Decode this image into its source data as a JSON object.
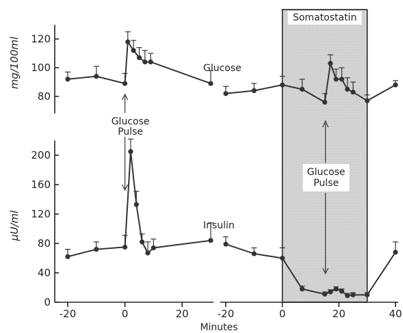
{
  "chart_data": [
    {
      "type": "line",
      "panel": "top",
      "ylabel": "mg/100ml",
      "yticks": [
        80,
        100,
        120
      ],
      "ylim": [
        70,
        128
      ],
      "x_axis_segments": [
        {
          "xlim": [
            -22,
            31
          ]
        },
        {
          "xlim": [
            -22,
            41
          ]
        }
      ],
      "annotations": [
        "Glucose",
        "Glucose\nPulse",
        "Somatostatin"
      ],
      "series": [
        {
          "segment": 0,
          "points": [
            {
              "x": -20,
              "y": 92,
              "err": 5
            },
            {
              "x": -10,
              "y": 94,
              "err": 7
            },
            {
              "x": 0,
              "y": 89,
              "err": 7
            },
            {
              "x": 1,
              "y": 118,
              "err": 7
            },
            {
              "x": 3,
              "y": 112,
              "err": 7
            },
            {
              "x": 5,
              "y": 107,
              "err": 7
            },
            {
              "x": 7,
              "y": 104,
              "err": 8
            },
            {
              "x": 9,
              "y": 104,
              "err": 6
            },
            {
              "x": 30,
              "y": 89,
              "err": 9
            }
          ]
        },
        {
          "segment": 1,
          "points": [
            {
              "x": -20,
              "y": 82,
              "err": 5
            },
            {
              "x": -10,
              "y": 84,
              "err": 5
            },
            {
              "x": 0,
              "y": 88,
              "err": 6
            },
            {
              "x": 7,
              "y": 85,
              "err": 7
            },
            {
              "x": 15,
              "y": 76,
              "err": 6
            },
            {
              "x": 17,
              "y": 103,
              "err": 6
            },
            {
              "x": 19,
              "y": 92,
              "err": 7
            },
            {
              "x": 21,
              "y": 92,
              "err": 8
            },
            {
              "x": 23,
              "y": 85,
              "err": 8
            },
            {
              "x": 25,
              "y": 83,
              "err": 7
            },
            {
              "x": 30,
              "y": 77,
              "err": 4
            },
            {
              "x": 40,
              "y": 88,
              "err": 3
            }
          ]
        }
      ]
    },
    {
      "type": "line",
      "panel": "bottom",
      "ylabel": "μU/ml",
      "xlabel": "Minutes",
      "yticks": [
        0,
        40,
        80,
        120,
        160,
        200
      ],
      "ylim": [
        0,
        220
      ],
      "x_axis_segments": [
        {
          "xlim": [
            -22,
            31
          ],
          "ticks": [
            -20,
            0,
            20
          ]
        },
        {
          "xlim": [
            -22,
            41
          ],
          "ticks": [
            -20,
            0,
            20,
            40
          ]
        }
      ],
      "annotations": [
        "Insulin",
        "Glucose\nPulse"
      ],
      "series": [
        {
          "segment": 0,
          "points": [
            {
              "x": -20,
              "y": 62,
              "err": 10
            },
            {
              "x": -10,
              "y": 72,
              "err": 10
            },
            {
              "x": 0,
              "y": 75,
              "err": 16
            },
            {
              "x": 2,
              "y": 205,
              "err": 17
            },
            {
              "x": 4,
              "y": 133,
              "err": 18
            },
            {
              "x": 6,
              "y": 82,
              "err": 11
            },
            {
              "x": 8,
              "y": 67,
              "err": 15
            },
            {
              "x": 10,
              "y": 74,
              "err": 12
            },
            {
              "x": 30,
              "y": 84,
              "err": 24
            }
          ]
        },
        {
          "segment": 1,
          "points": [
            {
              "x": -20,
              "y": 79,
              "err": 10
            },
            {
              "x": -10,
              "y": 66,
              "err": 8
            },
            {
              "x": 0,
              "y": 60,
              "err": 14
            },
            {
              "x": 7,
              "y": 18,
              "err": 4
            },
            {
              "x": 15,
              "y": 11,
              "err": 3
            },
            {
              "x": 17,
              "y": 14,
              "err": 3
            },
            {
              "x": 19,
              "y": 18,
              "err": 3
            },
            {
              "x": 21,
              "y": 15,
              "err": 3
            },
            {
              "x": 23,
              "y": 9,
              "err": 3
            },
            {
              "x": 25,
              "y": 10,
              "err": 3
            },
            {
              "x": 30,
              "y": 10,
              "err": 3
            },
            {
              "x": 40,
              "y": 68,
              "err": 14
            }
          ]
        }
      ]
    }
  ],
  "shaded_region": {
    "segment": 1,
    "x_from": 0,
    "x_to": 30,
    "label": "Somatostatin"
  }
}
